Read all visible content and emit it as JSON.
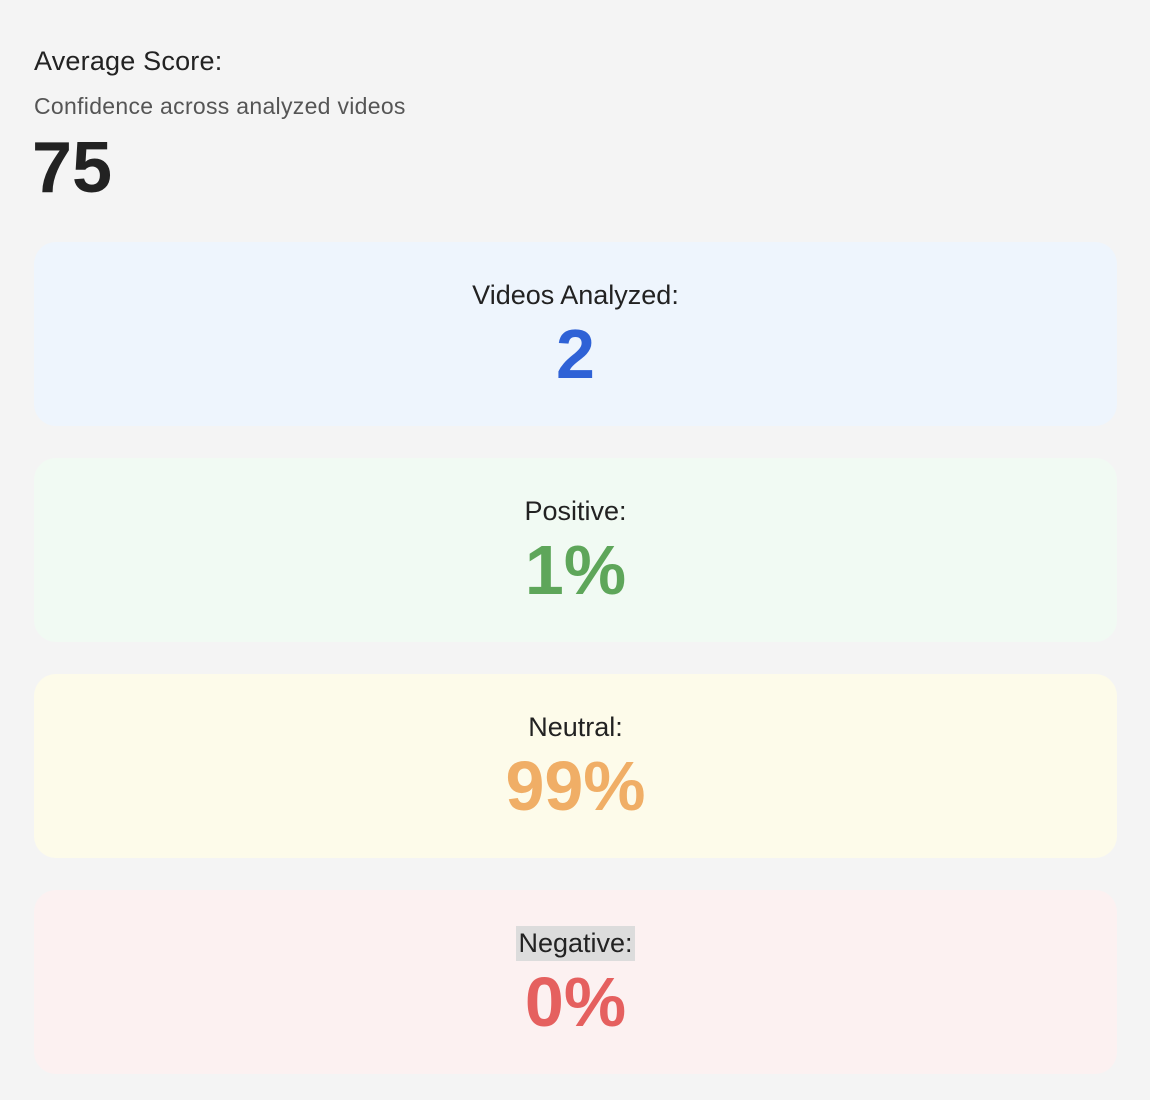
{
  "score": {
    "title": "Average Score:",
    "subtitle": "Confidence across analyzed videos",
    "value": "75"
  },
  "cards": [
    {
      "label": "Videos Analyzed:",
      "value": "2",
      "bg_color": "#eef5fd",
      "value_color": "#2f62d6"
    },
    {
      "label": "Positive:",
      "value": "1%",
      "bg_color": "#f1faf3",
      "value_color": "#5ea65a"
    },
    {
      "label": "Neutral:",
      "value": "99%",
      "bg_color": "#fdfbea",
      "value_color": "#f0ae66"
    },
    {
      "label": "Negative:",
      "value": "0%",
      "bg_color": "#fcf1f1",
      "value_color": "#e5605f"
    }
  ]
}
